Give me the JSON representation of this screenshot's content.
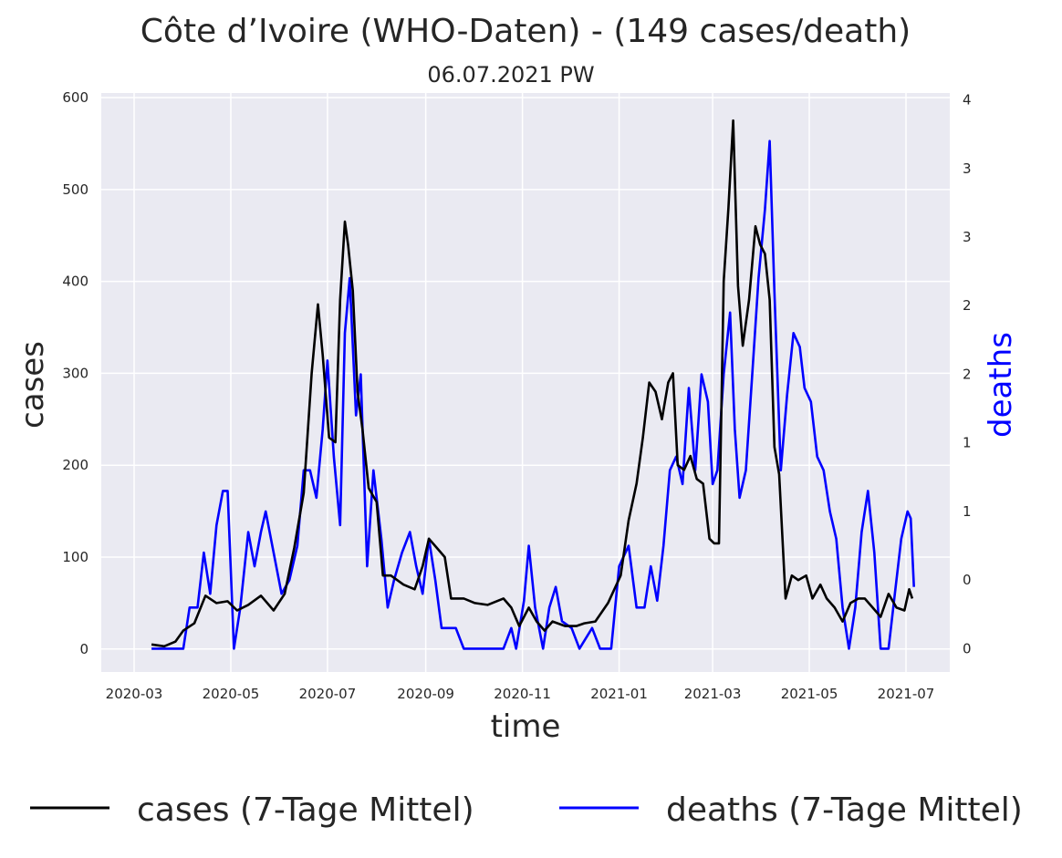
{
  "chart_data": {
    "type": "line",
    "title": "Côte d’Ivoire (WHO-Daten) - (149 cases/death)",
    "subtitle": "06.07.2021 PW",
    "xlabel": "time",
    "ylabel": "cases",
    "y2label": "deaths",
    "x_tick_labels": [
      "2020-03",
      "2020-05",
      "2020-07",
      "2020-09",
      "2020-11",
      "2021-01",
      "2021-03",
      "2021-05",
      "2021-07"
    ],
    "y_ticks": [
      0,
      100,
      200,
      300,
      400,
      500,
      600
    ],
    "y2_ticks": [
      0,
      0.5,
      1,
      1.5,
      2,
      2.5,
      3,
      3.5,
      4
    ],
    "y2_tick_labels": [
      "0",
      "0",
      "1",
      "1",
      "2",
      "2",
      "3",
      "3",
      "4"
    ],
    "ylim": [
      -25,
      605
    ],
    "y2lim": [
      -0.17,
      4.05
    ],
    "grid": true,
    "legend_position": "bottom",
    "series": [
      {
        "name": "cases (7-Tage Mittel)",
        "axis": "left",
        "color": "#000000",
        "points": [
          [
            "2020-03-12",
            5
          ],
          [
            "2020-03-20",
            3
          ],
          [
            "2020-03-27",
            8
          ],
          [
            "2020-04-01",
            20
          ],
          [
            "2020-04-08",
            28
          ],
          [
            "2020-04-15",
            58
          ],
          [
            "2020-04-22",
            50
          ],
          [
            "2020-04-29",
            52
          ],
          [
            "2020-05-05",
            42
          ],
          [
            "2020-05-12",
            48
          ],
          [
            "2020-05-20",
            58
          ],
          [
            "2020-05-28",
            42
          ],
          [
            "2020-06-04",
            60
          ],
          [
            "2020-06-10",
            110
          ],
          [
            "2020-06-16",
            170
          ],
          [
            "2020-06-21",
            300
          ],
          [
            "2020-06-25",
            375
          ],
          [
            "2020-06-28",
            320
          ],
          [
            "2020-07-02",
            230
          ],
          [
            "2020-07-06",
            225
          ],
          [
            "2020-07-09",
            380
          ],
          [
            "2020-07-12",
            465
          ],
          [
            "2020-07-14",
            440
          ],
          [
            "2020-07-17",
            390
          ],
          [
            "2020-07-20",
            280
          ],
          [
            "2020-07-23",
            240
          ],
          [
            "2020-07-27",
            175
          ],
          [
            "2020-08-01",
            160
          ],
          [
            "2020-08-05",
            80
          ],
          [
            "2020-08-10",
            80
          ],
          [
            "2020-08-18",
            70
          ],
          [
            "2020-08-25",
            65
          ],
          [
            "2020-08-30",
            90
          ],
          [
            "2020-09-03",
            120
          ],
          [
            "2020-09-08",
            110
          ],
          [
            "2020-09-13",
            100
          ],
          [
            "2020-09-17",
            55
          ],
          [
            "2020-09-25",
            55
          ],
          [
            "2020-10-02",
            50
          ],
          [
            "2020-10-10",
            48
          ],
          [
            "2020-10-20",
            55
          ],
          [
            "2020-10-25",
            45
          ],
          [
            "2020-10-30",
            25
          ],
          [
            "2020-11-05",
            45
          ],
          [
            "2020-11-10",
            30
          ],
          [
            "2020-11-15",
            20
          ],
          [
            "2020-11-20",
            30
          ],
          [
            "2020-11-28",
            25
          ],
          [
            "2020-12-05",
            25
          ],
          [
            "2020-12-10",
            28
          ],
          [
            "2020-12-17",
            30
          ],
          [
            "2020-12-25",
            50
          ],
          [
            "2021-01-02",
            80
          ],
          [
            "2021-01-07",
            140
          ],
          [
            "2021-01-12",
            180
          ],
          [
            "2021-01-16",
            230
          ],
          [
            "2021-01-20",
            290
          ],
          [
            "2021-01-24",
            280
          ],
          [
            "2021-01-28",
            250
          ],
          [
            "2021-02-01",
            290
          ],
          [
            "2021-02-04",
            300
          ],
          [
            "2021-02-07",
            200
          ],
          [
            "2021-02-11",
            195
          ],
          [
            "2021-02-15",
            210
          ],
          [
            "2021-02-19",
            185
          ],
          [
            "2021-02-23",
            180
          ],
          [
            "2021-02-27",
            120
          ],
          [
            "2021-03-02",
            115
          ],
          [
            "2021-03-05",
            115
          ],
          [
            "2021-03-08",
            400
          ],
          [
            "2021-03-11",
            480
          ],
          [
            "2021-03-14",
            575
          ],
          [
            "2021-03-17",
            395
          ],
          [
            "2021-03-20",
            330
          ],
          [
            "2021-03-24",
            380
          ],
          [
            "2021-03-28",
            460
          ],
          [
            "2021-03-31",
            440
          ],
          [
            "2021-04-03",
            430
          ],
          [
            "2021-04-06",
            380
          ],
          [
            "2021-04-09",
            220
          ],
          [
            "2021-04-12",
            190
          ],
          [
            "2021-04-16",
            55
          ],
          [
            "2021-04-20",
            80
          ],
          [
            "2021-04-24",
            75
          ],
          [
            "2021-04-29",
            80
          ],
          [
            "2021-05-03",
            55
          ],
          [
            "2021-05-08",
            70
          ],
          [
            "2021-05-12",
            55
          ],
          [
            "2021-05-17",
            45
          ],
          [
            "2021-05-22",
            30
          ],
          [
            "2021-05-27",
            50
          ],
          [
            "2021-06-01",
            55
          ],
          [
            "2021-06-05",
            55
          ],
          [
            "2021-06-10",
            45
          ],
          [
            "2021-06-15",
            35
          ],
          [
            "2021-06-20",
            60
          ],
          [
            "2021-06-25",
            45
          ],
          [
            "2021-06-30",
            42
          ],
          [
            "2021-07-03",
            65
          ],
          [
            "2021-07-05",
            55
          ]
        ]
      },
      {
        "name": "deaths (7-Tage Mittel)",
        "axis": "right",
        "color": "#0000ff",
        "points": [
          [
            "2020-03-12",
            0.0
          ],
          [
            "2020-04-01",
            0.0
          ],
          [
            "2020-04-05",
            0.3
          ],
          [
            "2020-04-10",
            0.3
          ],
          [
            "2020-04-14",
            0.7
          ],
          [
            "2020-04-18",
            0.4
          ],
          [
            "2020-04-22",
            0.9
          ],
          [
            "2020-04-26",
            1.15
          ],
          [
            "2020-04-29",
            1.15
          ],
          [
            "2020-05-03",
            0.0
          ],
          [
            "2020-05-07",
            0.3
          ],
          [
            "2020-05-12",
            0.85
          ],
          [
            "2020-05-16",
            0.6
          ],
          [
            "2020-05-20",
            0.85
          ],
          [
            "2020-05-23",
            1.0
          ],
          [
            "2020-05-28",
            0.7
          ],
          [
            "2020-06-02",
            0.4
          ],
          [
            "2020-06-07",
            0.5
          ],
          [
            "2020-06-12",
            0.75
          ],
          [
            "2020-06-16",
            1.3
          ],
          [
            "2020-06-20",
            1.3
          ],
          [
            "2020-06-24",
            1.1
          ],
          [
            "2020-06-28",
            1.6
          ],
          [
            "2020-07-01",
            2.1
          ],
          [
            "2020-07-05",
            1.4
          ],
          [
            "2020-07-09",
            0.9
          ],
          [
            "2020-07-12",
            2.3
          ],
          [
            "2020-07-15",
            2.7
          ],
          [
            "2020-07-19",
            1.7
          ],
          [
            "2020-07-22",
            2.0
          ],
          [
            "2020-07-26",
            0.6
          ],
          [
            "2020-07-30",
            1.3
          ],
          [
            "2020-08-04",
            0.8
          ],
          [
            "2020-08-08",
            0.3
          ],
          [
            "2020-08-12",
            0.5
          ],
          [
            "2020-08-17",
            0.7
          ],
          [
            "2020-08-22",
            0.85
          ],
          [
            "2020-08-26",
            0.6
          ],
          [
            "2020-08-30",
            0.4
          ],
          [
            "2020-09-03",
            0.8
          ],
          [
            "2020-09-07",
            0.5
          ],
          [
            "2020-09-11",
            0.15
          ],
          [
            "2020-09-20",
            0.15
          ],
          [
            "2020-09-25",
            0.0
          ],
          [
            "2020-10-20",
            0.0
          ],
          [
            "2020-10-25",
            0.15
          ],
          [
            "2020-10-28",
            0.0
          ],
          [
            "2020-11-02",
            0.35
          ],
          [
            "2020-11-05",
            0.75
          ],
          [
            "2020-11-09",
            0.3
          ],
          [
            "2020-11-14",
            0.0
          ],
          [
            "2020-11-18",
            0.3
          ],
          [
            "2020-11-22",
            0.45
          ],
          [
            "2020-11-26",
            0.2
          ],
          [
            "2020-12-02",
            0.15
          ],
          [
            "2020-12-07",
            0.0
          ],
          [
            "2020-12-15",
            0.15
          ],
          [
            "2020-12-20",
            0.0
          ],
          [
            "2020-12-27",
            0.0
          ],
          [
            "2021-01-01",
            0.6
          ],
          [
            "2021-01-07",
            0.75
          ],
          [
            "2021-01-12",
            0.3
          ],
          [
            "2021-01-17",
            0.3
          ],
          [
            "2021-01-21",
            0.6
          ],
          [
            "2021-01-25",
            0.35
          ],
          [
            "2021-01-29",
            0.75
          ],
          [
            "2021-02-02",
            1.3
          ],
          [
            "2021-02-06",
            1.4
          ],
          [
            "2021-02-10",
            1.2
          ],
          [
            "2021-02-14",
            1.9
          ],
          [
            "2021-02-18",
            1.3
          ],
          [
            "2021-02-22",
            2.0
          ],
          [
            "2021-02-26",
            1.8
          ],
          [
            "2021-03-01",
            1.2
          ],
          [
            "2021-03-04",
            1.3
          ],
          [
            "2021-03-08",
            2.0
          ],
          [
            "2021-03-12",
            2.45
          ],
          [
            "2021-03-15",
            1.6
          ],
          [
            "2021-03-18",
            1.1
          ],
          [
            "2021-03-22",
            1.3
          ],
          [
            "2021-03-26",
            2.0
          ],
          [
            "2021-03-30",
            2.7
          ],
          [
            "2021-04-03",
            3.2
          ],
          [
            "2021-04-06",
            3.7
          ],
          [
            "2021-04-09",
            2.6
          ],
          [
            "2021-04-13",
            1.3
          ],
          [
            "2021-04-17",
            1.85
          ],
          [
            "2021-04-21",
            2.3
          ],
          [
            "2021-04-25",
            2.2
          ],
          [
            "2021-04-28",
            1.9
          ],
          [
            "2021-05-02",
            1.8
          ],
          [
            "2021-05-06",
            1.4
          ],
          [
            "2021-05-10",
            1.3
          ],
          [
            "2021-05-14",
            1.0
          ],
          [
            "2021-05-18",
            0.8
          ],
          [
            "2021-05-22",
            0.3
          ],
          [
            "2021-05-26",
            0.0
          ],
          [
            "2021-05-30",
            0.3
          ],
          [
            "2021-06-03",
            0.85
          ],
          [
            "2021-06-07",
            1.15
          ],
          [
            "2021-06-11",
            0.7
          ],
          [
            "2021-06-15",
            0.0
          ],
          [
            "2021-06-20",
            0.0
          ],
          [
            "2021-06-24",
            0.4
          ],
          [
            "2021-06-28",
            0.8
          ],
          [
            "2021-07-02",
            1.0
          ],
          [
            "2021-07-04",
            0.95
          ],
          [
            "2021-07-06",
            0.45
          ]
        ]
      }
    ]
  }
}
